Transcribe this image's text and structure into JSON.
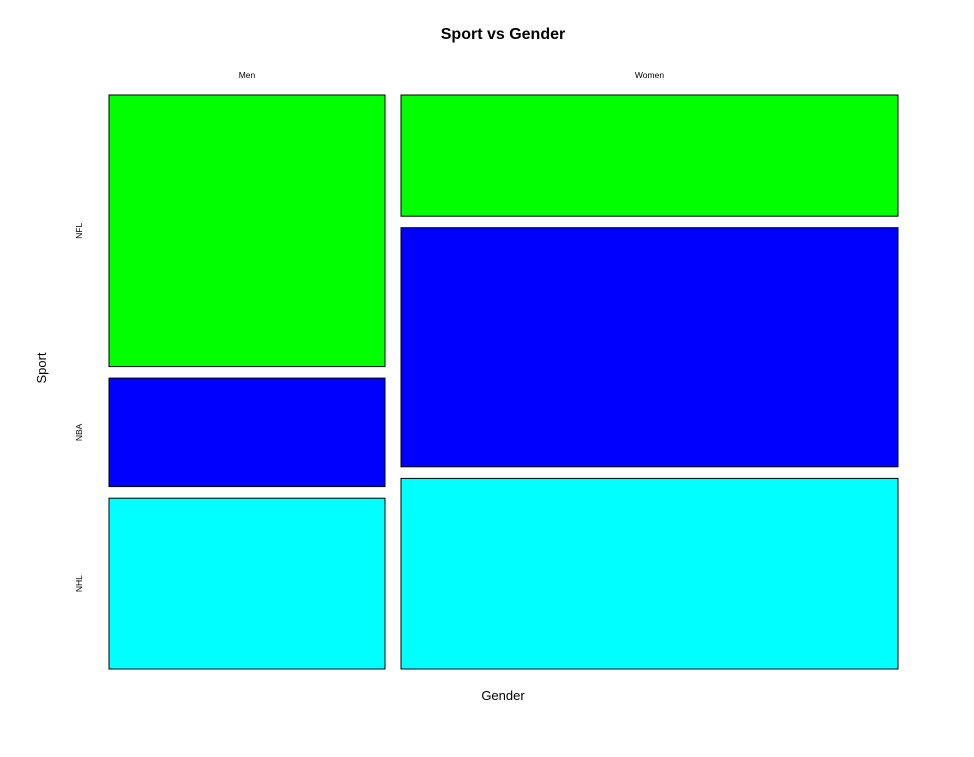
{
  "chart_data": {
    "type": "mosaic",
    "title": "Sport vs Gender",
    "xlabel": "Gender",
    "ylabel": "Sport",
    "x_categories": [
      "Men",
      "Women"
    ],
    "y_categories": [
      "NFL",
      "NBA",
      "NHL"
    ],
    "column_proportions": [
      0.357,
      0.643
    ],
    "cells": [
      {
        "x": "Men",
        "y": "NFL",
        "proportion": 0.493,
        "color": "#00ff00"
      },
      {
        "x": "Men",
        "y": "NBA",
        "proportion": 0.197,
        "color": "#0000ff"
      },
      {
        "x": "Men",
        "y": "NHL",
        "proportion": 0.31,
        "color": "#00ffff"
      },
      {
        "x": "Women",
        "y": "NFL",
        "proportion": 0.22,
        "color": "#00ff00"
      },
      {
        "x": "Women",
        "y": "NBA",
        "proportion": 0.434,
        "color": "#0000ff"
      },
      {
        "x": "Women",
        "y": "NHL",
        "proportion": 0.346,
        "color": "#00ffff"
      }
    ],
    "grid": false,
    "legend": "none"
  }
}
